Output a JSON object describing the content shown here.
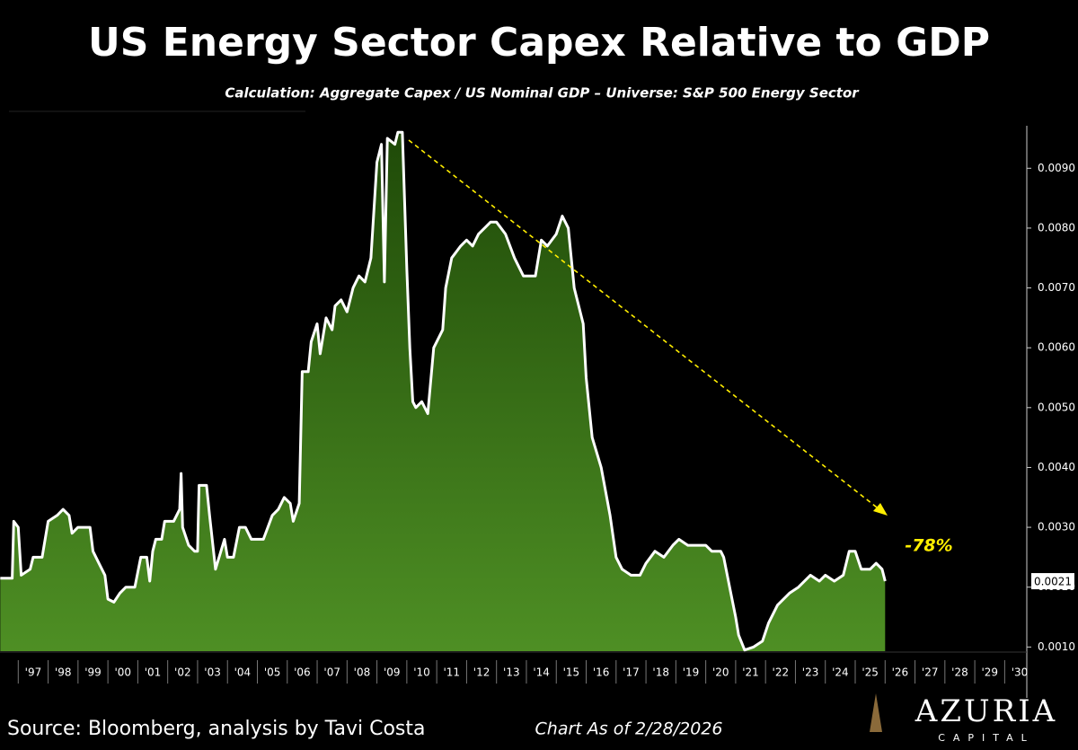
{
  "chart_data": {
    "type": "area",
    "title": "US Energy Sector Capex Relative to GDP",
    "subtitle": "Calculation: Aggregate Capex / US Nominal GDP – Universe: S&P 500 Energy Sector",
    "annotation": "-78%",
    "current_value": 0.0021,
    "source": "Source: Bloomberg, analysis by Tavi Costa",
    "as_of": "Chart As of 2/28/2026",
    "brand": "AZURIA",
    "brand_sub": "CAPITAL",
    "color": "#ffffff",
    "fill_top": "#1f4a08",
    "fill_bottom": "#4e8f24",
    "xlim": [
      1996.39,
      2030.74
    ],
    "ylim": [
      0.00093,
      0.00971
    ],
    "xticks": [
      {
        "value": 1997,
        "label": "'97"
      },
      {
        "value": 1998,
        "label": "'98"
      },
      {
        "value": 1999,
        "label": "'99"
      },
      {
        "value": 2000,
        "label": "'00"
      },
      {
        "value": 2001,
        "label": "'01"
      },
      {
        "value": 2002,
        "label": "'02"
      },
      {
        "value": 2003,
        "label": "'03"
      },
      {
        "value": 2004,
        "label": "'04"
      },
      {
        "value": 2005,
        "label": "'05"
      },
      {
        "value": 2006,
        "label": "'06"
      },
      {
        "value": 2007,
        "label": "'07"
      },
      {
        "value": 2008,
        "label": "'08"
      },
      {
        "value": 2009,
        "label": "'09"
      },
      {
        "value": 2010,
        "label": "'10"
      },
      {
        "value": 2011,
        "label": "'11"
      },
      {
        "value": 2012,
        "label": "'12"
      },
      {
        "value": 2013,
        "label": "'13"
      },
      {
        "value": 2014,
        "label": "'14"
      },
      {
        "value": 2015,
        "label": "'15"
      },
      {
        "value": 2016,
        "label": "'16"
      },
      {
        "value": 2017,
        "label": "'17"
      },
      {
        "value": 2018,
        "label": "'18"
      },
      {
        "value": 2019,
        "label": "'19"
      },
      {
        "value": 2020,
        "label": "'20"
      },
      {
        "value": 2021,
        "label": "'21"
      },
      {
        "value": 2022,
        "label": "'22"
      },
      {
        "value": 2023,
        "label": "'23"
      },
      {
        "value": 2024,
        "label": "'24"
      },
      {
        "value": 2025,
        "label": "'25"
      },
      {
        "value": 2026,
        "label": "'26"
      },
      {
        "value": 2027,
        "label": "'27"
      },
      {
        "value": 2028,
        "label": "'28"
      },
      {
        "value": 2029,
        "label": "'29"
      },
      {
        "value": 2030,
        "label": "'30"
      }
    ],
    "yticks": [
      {
        "value": 0.001,
        "label": "0.0010"
      },
      {
        "value": 0.002,
        "label": "0.0020"
      },
      {
        "value": 0.003,
        "label": "0.0030"
      },
      {
        "value": 0.004,
        "label": "0.0040"
      },
      {
        "value": 0.005,
        "label": "0.0050"
      },
      {
        "value": 0.006,
        "label": "0.0060"
      },
      {
        "value": 0.007,
        "label": "0.0070"
      },
      {
        "value": 0.008,
        "label": "0.0080"
      },
      {
        "value": 0.009,
        "label": "0.0090"
      }
    ],
    "x": [
      1996.4,
      1996.8,
      1996.85,
      1997.0,
      1997.1,
      1997.4,
      1997.5,
      1997.8,
      1998.0,
      1998.3,
      1998.5,
      1998.7,
      1998.8,
      1999.0,
      1999.4,
      1999.5,
      1999.7,
      1999.9,
      2000.0,
      2000.2,
      2000.4,
      2000.6,
      2000.9,
      2001.1,
      2001.3,
      2001.4,
      2001.5,
      2001.6,
      2001.8,
      2001.9,
      2002.2,
      2002.4,
      2002.45,
      2002.5,
      2002.7,
      2002.9,
      2003.0,
      2003.05,
      2003.3,
      2003.4,
      2003.6,
      2003.9,
      2004.0,
      2004.2,
      2004.4,
      2004.6,
      2004.8,
      2005.2,
      2005.5,
      2005.7,
      2005.9,
      2006.1,
      2006.2,
      2006.4,
      2006.5,
      2006.7,
      2006.8,
      2007.0,
      2007.1,
      2007.3,
      2007.5,
      2007.6,
      2007.8,
      2008.0,
      2008.2,
      2008.4,
      2008.6,
      2008.8,
      2009.0,
      2009.15,
      2009.25,
      2009.35,
      2009.6,
      2009.7,
      2009.85,
      2010.0,
      2010.1,
      2010.2,
      2010.3,
      2010.5,
      2010.7,
      2010.9,
      2011.2,
      2011.3,
      2011.5,
      2011.8,
      2012.0,
      2012.2,
      2012.4,
      2012.6,
      2012.8,
      2013.0,
      2013.3,
      2013.6,
      2013.9,
      2014.1,
      2014.3,
      2014.5,
      2014.7,
      2015.0,
      2015.2,
      2015.4,
      2015.6,
      2015.9,
      2016.0,
      2016.2,
      2016.5,
      2016.8,
      2017.0,
      2017.2,
      2017.5,
      2017.8,
      2018.0,
      2018.3,
      2018.6,
      2018.9,
      2019.1,
      2019.4,
      2019.7,
      2020.0,
      2020.2,
      2020.5,
      2020.6,
      2020.8,
      2021.0,
      2021.1,
      2021.3,
      2021.6,
      2021.9,
      2022.1,
      2022.4,
      2022.8,
      2023.1,
      2023.5,
      2023.8,
      2024.0,
      2024.3,
      2024.6,
      2024.8,
      2025.0,
      2025.2,
      2025.5,
      2025.7,
      2025.9,
      2026.0
    ],
    "values": [
      0.00215,
      0.00215,
      0.0031,
      0.003,
      0.0022,
      0.0023,
      0.0025,
      0.0025,
      0.0031,
      0.0032,
      0.0033,
      0.0032,
      0.0029,
      0.003,
      0.003,
      0.0026,
      0.0024,
      0.0022,
      0.0018,
      0.00175,
      0.0019,
      0.002,
      0.002,
      0.0025,
      0.0025,
      0.0021,
      0.0026,
      0.0028,
      0.0028,
      0.0031,
      0.0031,
      0.0033,
      0.0039,
      0.003,
      0.0027,
      0.0026,
      0.0026,
      0.0037,
      0.0037,
      0.0032,
      0.0023,
      0.0028,
      0.0025,
      0.0025,
      0.003,
      0.003,
      0.0028,
      0.0028,
      0.0032,
      0.0033,
      0.0035,
      0.0034,
      0.0031,
      0.0034,
      0.0056,
      0.0056,
      0.0061,
      0.0064,
      0.0059,
      0.0065,
      0.0063,
      0.0067,
      0.0068,
      0.0066,
      0.007,
      0.0072,
      0.0071,
      0.0075,
      0.0091,
      0.0094,
      0.0071,
      0.0095,
      0.0094,
      0.0096,
      0.0096,
      0.0073,
      0.006,
      0.0051,
      0.005,
      0.0051,
      0.0049,
      0.006,
      0.0063,
      0.007,
      0.0075,
      0.0077,
      0.0078,
      0.0077,
      0.0079,
      0.008,
      0.0081,
      0.0081,
      0.0079,
      0.0075,
      0.0072,
      0.0072,
      0.0072,
      0.0078,
      0.0077,
      0.0079,
      0.0082,
      0.008,
      0.007,
      0.0064,
      0.0055,
      0.0045,
      0.004,
      0.0032,
      0.0025,
      0.0023,
      0.0022,
      0.0022,
      0.0024,
      0.0026,
      0.0025,
      0.0027,
      0.0028,
      0.0027,
      0.0027,
      0.0027,
      0.0026,
      0.0026,
      0.0025,
      0.002,
      0.0015,
      0.0012,
      0.00095,
      0.001,
      0.0011,
      0.0014,
      0.0017,
      0.0019,
      0.002,
      0.0022,
      0.0021,
      0.0022,
      0.0021,
      0.0022,
      0.0026,
      0.0026,
      0.0023,
      0.0023,
      0.0024,
      0.0023,
      0.0021
    ]
  }
}
